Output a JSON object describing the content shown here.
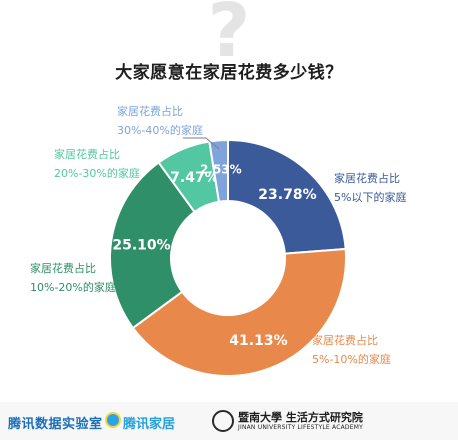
{
  "chart_data": {
    "type": "pie",
    "variant": "donut",
    "title": "大家愿意在家居花费多少钱？",
    "slices": [
      {
        "label_line1": "家居花费占比",
        "label_line2": "5%以下的家庭",
        "value": 23.78,
        "value_label": "23.78%",
        "color": "#3b5a9a"
      },
      {
        "label_line1": "家居花费占比",
        "label_line2": "5%-10%的家庭",
        "value": 41.13,
        "value_label": "41.13%",
        "color": "#e8884a"
      },
      {
        "label_line1": "家居花费占比",
        "label_line2": "10%-20%的家庭",
        "value": 25.1,
        "value_label": "25.10%",
        "color": "#2f8f68"
      },
      {
        "label_line1": "家居花费占比",
        "label_line2": "20%-30%的家庭",
        "value": 7.47,
        "value_label": "7.47%",
        "color": "#53c7a1"
      },
      {
        "label_line1": "家居花费占比",
        "label_line2": "30%-40%的家庭",
        "value": 2.53,
        "value_label": "2.53%",
        "color": "#7fa3db"
      }
    ],
    "legend": "none"
  },
  "decor": {
    "question_mark": "?"
  },
  "footer": {
    "brand1": "腾讯数据实验室",
    "brand2": "腾讯家居",
    "brand3": "暨南大學 生活方式研究院",
    "brand3_sub": "JINAN UNIVERSITY LIFESTYLE ACADEMY"
  }
}
